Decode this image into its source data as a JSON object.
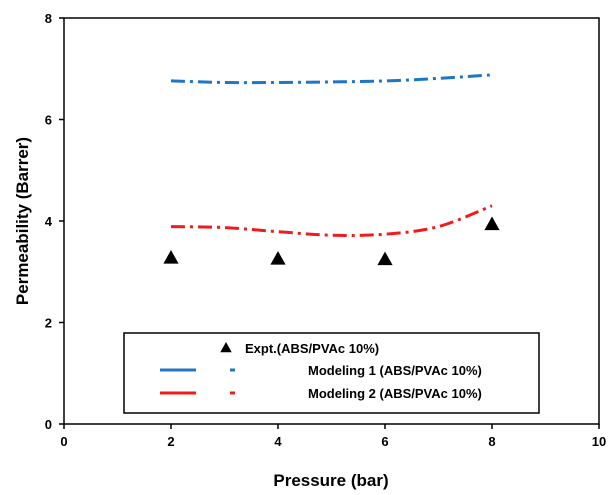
{
  "chart_data": {
    "type": "scatter",
    "title": "",
    "xlabel": "Pressure (bar)",
    "ylabel": "Permeability (Barrer)",
    "xlim": [
      0,
      10
    ],
    "ylim": [
      0,
      8
    ],
    "xticks": [
      "0",
      "2",
      "4",
      "6",
      "8",
      "10"
    ],
    "yticks": [
      "0",
      "2",
      "4",
      "6",
      "8"
    ],
    "grid": false,
    "legend_position": "bottom-center",
    "series": [
      {
        "name": "Expt.(ABS/PVAc 10%)",
        "kind": "markers",
        "marker": "triangle",
        "color": "#000000",
        "x": [
          2,
          4,
          6,
          8
        ],
        "y": [
          3.27,
          3.25,
          3.24,
          3.93
        ]
      },
      {
        "name": "Modeling 1 (ABS/PVAc 10%)",
        "kind": "dash-dot-line",
        "color": "#1f77c4",
        "x": [
          2,
          3,
          4,
          5,
          6,
          7,
          8
        ],
        "y": [
          6.76,
          6.73,
          6.73,
          6.74,
          6.76,
          6.81,
          6.88
        ]
      },
      {
        "name": "Modeling 2 (ABS/PVAc 10%)",
        "kind": "dash-dot-line",
        "color": "#ee1c1c",
        "x": [
          2,
          3,
          4,
          5,
          6,
          7,
          8
        ],
        "y": [
          3.89,
          3.87,
          3.79,
          3.72,
          3.74,
          3.89,
          4.3
        ]
      }
    ]
  }
}
